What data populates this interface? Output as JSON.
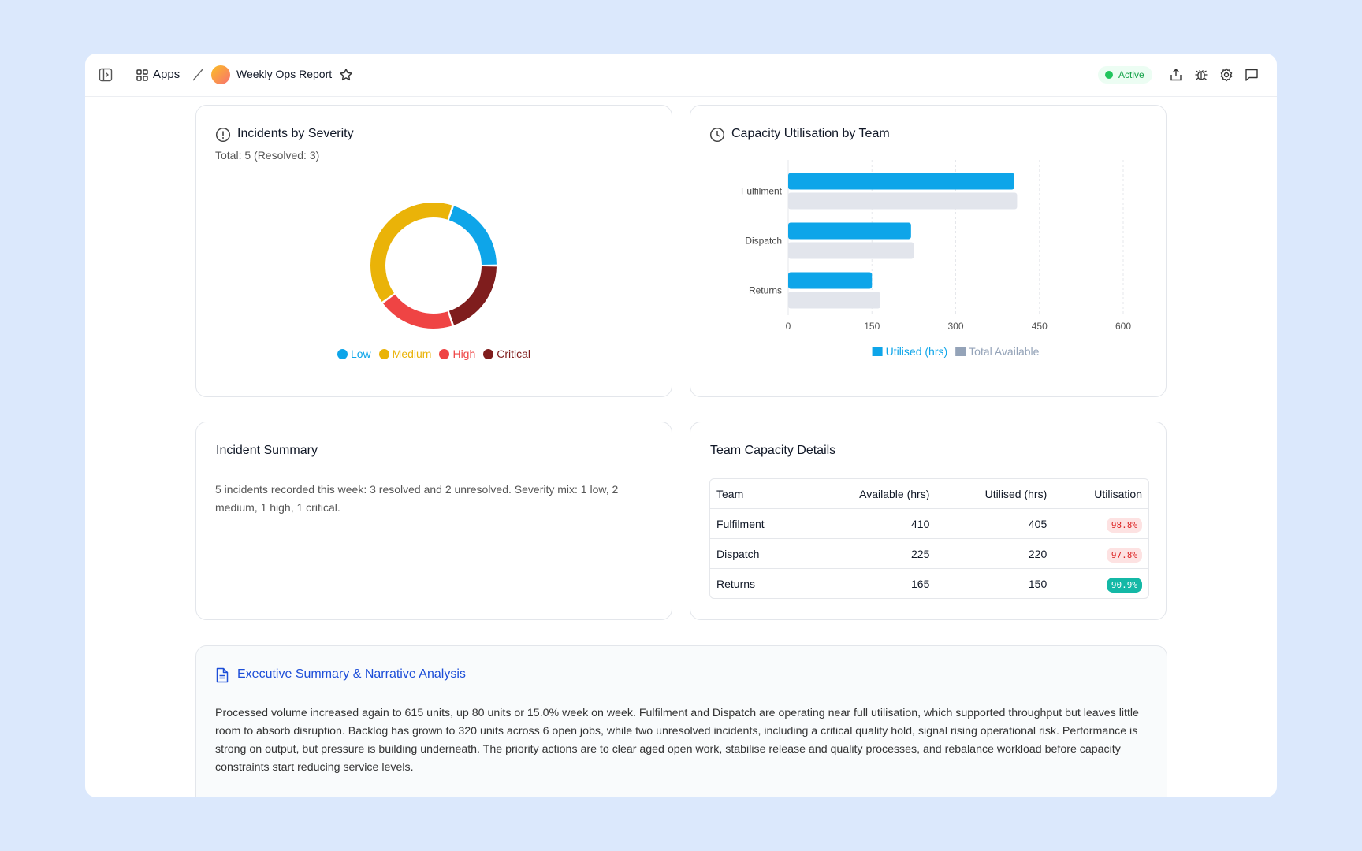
{
  "header": {
    "apps": "Apps",
    "title": "Weekly Ops Report",
    "status": "Active"
  },
  "chart_data": [
    {
      "type": "donut",
      "title": "Incidents by Severity",
      "subtitle": "Total: 5 (Resolved: 3)",
      "categories": [
        "Low",
        "Medium",
        "High",
        "Critical"
      ],
      "values": [
        1,
        2,
        1,
        1
      ],
      "colors": [
        "#0ea5e9",
        "#eab308",
        "#ef4444",
        "#7f1d1d"
      ],
      "legend": "bottom"
    },
    {
      "type": "hbar",
      "title": "Capacity Utilisation by Team",
      "categories": [
        "Fulfilment",
        "Dispatch",
        "Returns"
      ],
      "series": [
        {
          "name": "Utilised (hrs)",
          "color": "#0ea5e9",
          "values": [
            405,
            220,
            150
          ]
        },
        {
          "name": "Total Available",
          "color": "#e2e5ec",
          "legend_color": "#94a3b8",
          "values": [
            410,
            225,
            165
          ]
        }
      ],
      "xlim": [
        0,
        600
      ],
      "xticks": [
        0,
        150,
        300,
        450,
        600
      ],
      "grid": true,
      "legend": "bottom"
    }
  ],
  "incident_summary": {
    "title": "Incident Summary",
    "text": "5 incidents recorded this week: 3 resolved and 2 unresolved. Severity mix: 1 low, 2 medium, 1 high, 1 critical."
  },
  "team_capacity": {
    "title": "Team Capacity Details",
    "columns": [
      "Team",
      "Available (hrs)",
      "Utilised (hrs)",
      "Utilisation"
    ],
    "rows": [
      [
        "Fulfilment",
        410,
        405,
        "98.8%"
      ],
      [
        "Dispatch",
        225,
        220,
        "97.8%"
      ],
      [
        "Returns",
        165,
        150,
        "90.9%"
      ]
    ],
    "badge_colors": [
      [
        "#fde2e2",
        "#dc2626"
      ],
      [
        "#fde2e2",
        "#dc2626"
      ],
      [
        "#14b8a6",
        "#ffffff"
      ]
    ]
  },
  "executive_summary": {
    "title": "Executive Summary & Narrative Analysis",
    "text": "Processed volume increased again to 615 units, up 80 units or 15.0% week on week. Fulfilment and Dispatch are operating near full utilisation, which supported throughput but leaves little room to absorb disruption. Backlog has grown to 320 units across 6 open jobs, while two unresolved incidents, including a critical quality hold, signal rising operational risk. Performance is strong on output, but pressure is building underneath. The priority actions are to clear aged open work, stabilise release and quality processes, and rebalance workload before capacity constraints start reducing service levels."
  }
}
